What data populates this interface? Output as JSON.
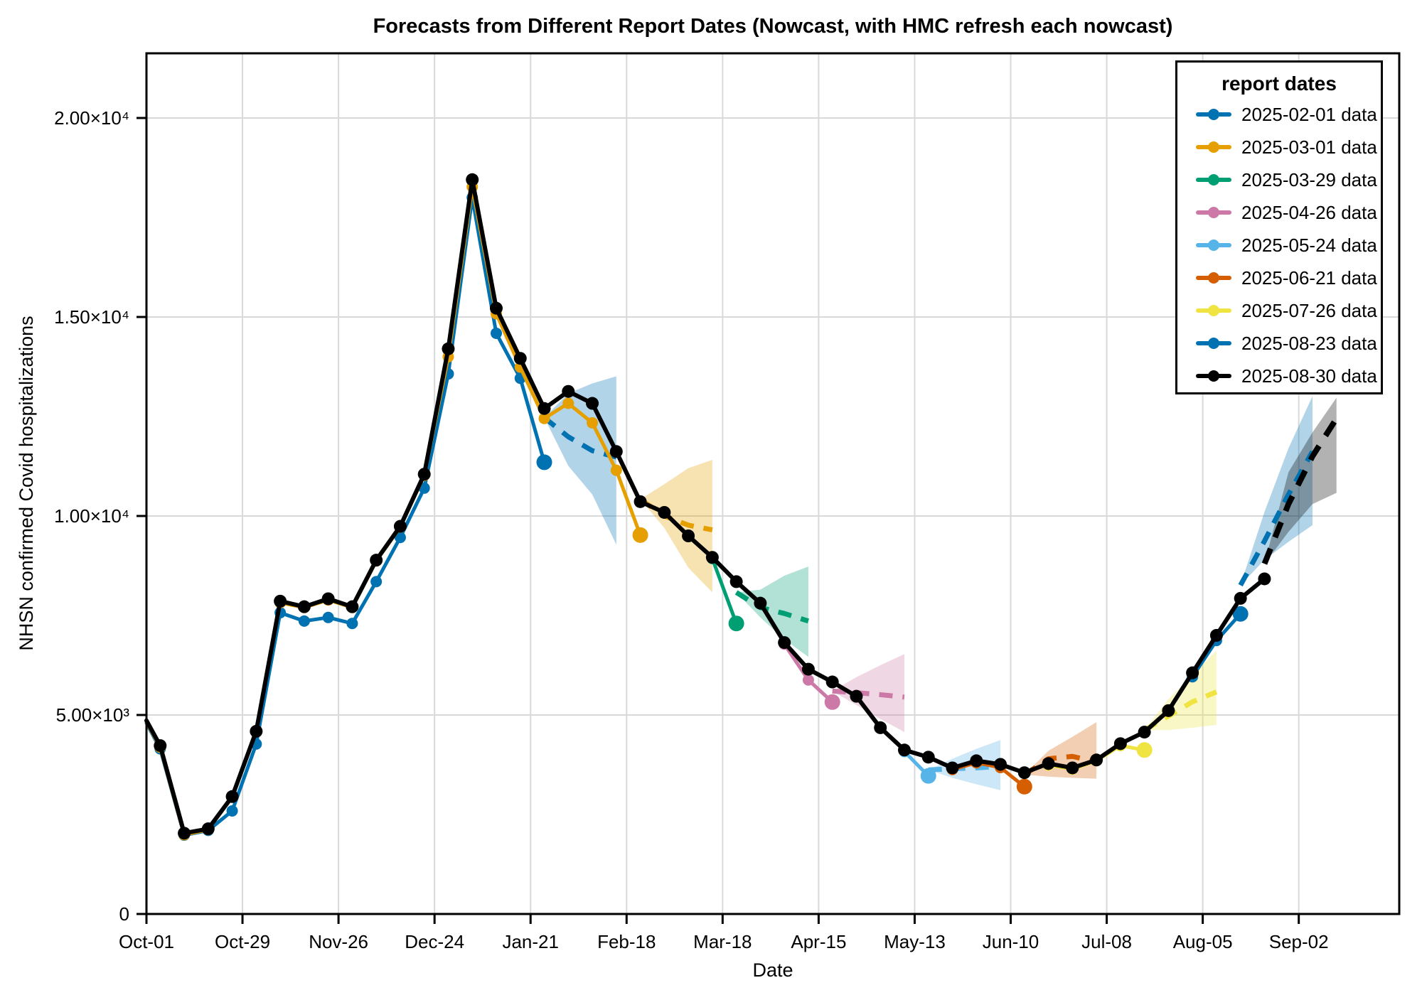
{
  "chart_data": {
    "type": "line",
    "title": "Forecasts from Different Report Dates (Nowcast, with HMC refresh each nowcast)",
    "xlabel": "Date",
    "ylabel": "NHSN confirmed Covid hospitalizations",
    "legend_title": "report dates",
    "legend_position": "top-right",
    "grid": true,
    "x_axis": {
      "unit": "days since Oct-01",
      "range": [
        0,
        365.3
      ],
      "ticks": [
        {
          "day": 0,
          "label": "Oct-01"
        },
        {
          "day": 28,
          "label": "Oct-29"
        },
        {
          "day": 56,
          "label": "Nov-26"
        },
        {
          "day": 84,
          "label": "Dec-24"
        },
        {
          "day": 112,
          "label": "Jan-21"
        },
        {
          "day": 140,
          "label": "Feb-18"
        },
        {
          "day": 168,
          "label": "Mar-18"
        },
        {
          "day": 196,
          "label": "Apr-15"
        },
        {
          "day": 224,
          "label": "May-13"
        },
        {
          "day": 252,
          "label": "Jun-10"
        },
        {
          "day": 280,
          "label": "Jul-08"
        },
        {
          "day": 308,
          "label": "Aug-05"
        },
        {
          "day": 336,
          "label": "Sep-02"
        }
      ]
    },
    "y_axis": {
      "range": [
        0,
        21625
      ],
      "ticks": [
        {
          "value": 0,
          "label": "0"
        },
        {
          "value": 5000,
          "label": "5.00×10³"
        },
        {
          "value": 10000,
          "label": "1.00×10⁴"
        },
        {
          "value": 15000,
          "label": "1.50×10⁴"
        },
        {
          "value": 20000,
          "label": "2.00×10⁴"
        }
      ]
    },
    "band_opacity": 0.3,
    "series": [
      {
        "name": "2025-02-01 data",
        "color": "#0072B2",
        "observed": [
          [
            0,
            4800,
            0
          ],
          [
            4,
            4150
          ],
          [
            11,
            1980
          ],
          [
            18,
            2100
          ],
          [
            25,
            2590
          ],
          [
            32,
            4270
          ],
          [
            39,
            7570
          ],
          [
            46,
            7360
          ],
          [
            53,
            7450
          ],
          [
            60,
            7300
          ],
          [
            67,
            8350
          ],
          [
            74,
            9460
          ],
          [
            81,
            10700
          ],
          [
            88,
            13570
          ],
          [
            95,
            18000
          ],
          [
            102,
            14590
          ],
          [
            109,
            13460
          ],
          [
            116,
            11350
          ]
        ],
        "forecast": [
          [
            116,
            12470
          ],
          [
            123,
            11990
          ],
          [
            130,
            11640
          ],
          [
            137,
            11480
          ]
        ],
        "band": {
          "days": [
            116,
            123,
            130,
            137
          ],
          "lo": [
            12470,
            11260,
            10540,
            9280
          ],
          "hi": [
            12470,
            13080,
            13330,
            13510
          ]
        }
      },
      {
        "name": "2025-03-01 data",
        "color": "#E69F00",
        "observed": [
          [
            0,
            4830,
            0
          ],
          [
            4,
            4190
          ],
          [
            11,
            1990
          ],
          [
            18,
            2120
          ],
          [
            25,
            2940
          ],
          [
            32,
            4580
          ],
          [
            39,
            7820
          ],
          [
            46,
            7700
          ],
          [
            53,
            7890
          ],
          [
            60,
            7700
          ],
          [
            67,
            8870
          ],
          [
            74,
            9720
          ],
          [
            81,
            11020
          ],
          [
            88,
            14000
          ],
          [
            95,
            18270
          ],
          [
            102,
            15080
          ],
          [
            109,
            13740
          ],
          [
            116,
            12450
          ],
          [
            123,
            12830
          ],
          [
            130,
            12340
          ],
          [
            137,
            11150
          ],
          [
            144,
            9520
          ]
        ],
        "forecast": [
          [
            144,
            10420
          ],
          [
            151,
            10000
          ],
          [
            158,
            9770
          ],
          [
            165,
            9650
          ]
        ],
        "band": {
          "days": [
            144,
            151,
            158,
            165
          ],
          "lo": [
            10420,
            9700,
            8700,
            8080
          ],
          "hi": [
            10420,
            10800,
            11200,
            11410
          ]
        }
      },
      {
        "name": "2025-03-29 data",
        "color": "#009E73",
        "observed": [
          [
            165,
            8930
          ],
          [
            172,
            7300
          ]
        ],
        "forecast": [
          [
            172,
            8080
          ],
          [
            179,
            7700
          ],
          [
            186,
            7550
          ],
          [
            193,
            7360
          ]
        ],
        "band": {
          "days": [
            172,
            179,
            186,
            193
          ],
          "lo": [
            8080,
            7450,
            6900,
            6460
          ],
          "hi": [
            8080,
            8150,
            8500,
            8730
          ]
        }
      },
      {
        "name": "2025-04-26 data",
        "color": "#CC79A7",
        "observed": [
          [
            186,
            6780
          ],
          [
            193,
            5880
          ],
          [
            200,
            5325
          ]
        ],
        "forecast": [
          [
            200,
            5600
          ],
          [
            207,
            5560
          ],
          [
            214,
            5510
          ],
          [
            221,
            5450
          ]
        ],
        "band": {
          "days": [
            200,
            207,
            214,
            221
          ],
          "lo": [
            5600,
            5250,
            4900,
            4570
          ],
          "hi": [
            5600,
            5950,
            6250,
            6530
          ]
        }
      },
      {
        "name": "2025-05-24 data",
        "color": "#56B4E9",
        "observed": [
          [
            221,
            4080
          ],
          [
            228,
            3470
          ]
        ],
        "forecast": [
          [
            228,
            3620
          ],
          [
            235,
            3650
          ],
          [
            242,
            3670
          ],
          [
            249,
            3710
          ]
        ],
        "band": {
          "days": [
            228,
            235,
            242,
            249
          ],
          "lo": [
            3620,
            3420,
            3260,
            3110
          ],
          "hi": [
            3620,
            3900,
            4150,
            4370
          ]
        }
      },
      {
        "name": "2025-06-21 data",
        "color": "#D55E00",
        "observed": [
          [
            235,
            3630
          ],
          [
            242,
            3800
          ],
          [
            249,
            3680
          ],
          [
            256,
            3200
          ]
        ],
        "forecast": [
          [
            256,
            3500
          ],
          [
            263,
            3900
          ],
          [
            270,
            3960
          ],
          [
            277,
            3820
          ]
        ],
        "band": {
          "days": [
            256,
            263,
            270,
            277
          ],
          "lo": [
            3500,
            3450,
            3420,
            3400
          ],
          "hi": [
            3500,
            4100,
            4450,
            4820
          ]
        }
      },
      {
        "name": "2025-07-26 data",
        "color": "#F0E442",
        "observed": [
          [
            263,
            3740
          ],
          [
            270,
            3640
          ],
          [
            277,
            3850
          ],
          [
            284,
            4230
          ],
          [
            291,
            4120
          ]
        ],
        "forecast": [
          [
            291,
            4620
          ],
          [
            298,
            4970
          ],
          [
            305,
            5330
          ],
          [
            312,
            5580
          ]
        ],
        "band": {
          "days": [
            291,
            298,
            305,
            312
          ],
          "lo": [
            4620,
            4620,
            4680,
            4750
          ],
          "hi": [
            4620,
            5400,
            6000,
            6620
          ]
        }
      },
      {
        "name": "2025-08-23 data",
        "color": "#0072B2",
        "observed": [
          [
            305,
            5960
          ],
          [
            312,
            6870
          ],
          [
            319,
            7540
          ]
        ],
        "forecast": [
          [
            319,
            8260
          ],
          [
            326,
            9370
          ],
          [
            333,
            10540
          ],
          [
            340,
            11620
          ]
        ],
        "band": {
          "days": [
            319,
            326,
            333,
            340
          ],
          "lo": [
            8260,
            8900,
            9350,
            9770
          ],
          "hi": [
            8260,
            10100,
            11700,
            13010
          ]
        }
      },
      {
        "name": "2025-08-30 data",
        "color": "#000000",
        "observed": [
          [
            0,
            4860,
            0
          ],
          [
            4,
            4230
          ],
          [
            11,
            2030
          ],
          [
            18,
            2140
          ],
          [
            25,
            2950
          ],
          [
            32,
            4590
          ],
          [
            39,
            7860
          ],
          [
            46,
            7720
          ],
          [
            53,
            7920
          ],
          [
            60,
            7720
          ],
          [
            67,
            8890
          ],
          [
            74,
            9740
          ],
          [
            81,
            11050
          ],
          [
            88,
            14200
          ],
          [
            95,
            18450
          ],
          [
            102,
            15220
          ],
          [
            109,
            13960
          ],
          [
            116,
            12700
          ],
          [
            123,
            13130
          ],
          [
            130,
            12830
          ],
          [
            137,
            11620
          ],
          [
            144,
            10360
          ],
          [
            151,
            10090
          ],
          [
            158,
            9500
          ],
          [
            165,
            8960
          ],
          [
            172,
            8350
          ],
          [
            179,
            7810
          ],
          [
            186,
            6820
          ],
          [
            193,
            6150
          ],
          [
            200,
            5830
          ],
          [
            207,
            5470
          ],
          [
            214,
            4680
          ],
          [
            221,
            4120
          ],
          [
            228,
            3940
          ],
          [
            235,
            3670
          ],
          [
            242,
            3850
          ],
          [
            249,
            3760
          ],
          [
            256,
            3550
          ],
          [
            263,
            3780
          ],
          [
            270,
            3670
          ],
          [
            277,
            3870
          ],
          [
            284,
            4280
          ],
          [
            291,
            4570
          ],
          [
            298,
            5110
          ],
          [
            305,
            6060
          ],
          [
            312,
            7000
          ],
          [
            319,
            7930
          ],
          [
            326,
            8420
          ]
        ],
        "forecast": [
          [
            326,
            8800
          ],
          [
            333,
            10300
          ],
          [
            340,
            11500
          ],
          [
            347,
            12450
          ]
        ],
        "band": {
          "days": [
            326,
            333,
            340,
            347
          ],
          "lo": [
            8800,
            9600,
            10300,
            10580
          ],
          "hi": [
            8800,
            11100,
            12100,
            12970
          ]
        }
      }
    ]
  }
}
